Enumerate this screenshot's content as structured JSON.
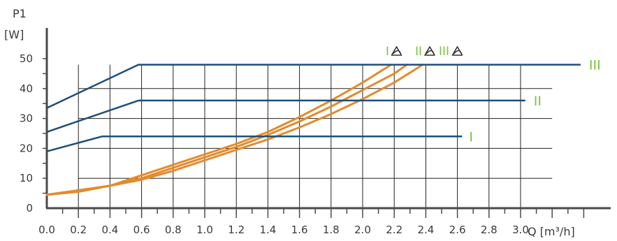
{
  "chart_data": {
    "type": "line",
    "title": "",
    "ylabel_line1": "P1",
    "ylabel_line2": "[W]",
    "xlabel": "Q [m³/h]",
    "xlim": [
      0,
      3.7
    ],
    "ylim": [
      0,
      55
    ],
    "x_ticks": [
      "0.0",
      "0.2",
      "0.4",
      "0.6",
      "0.8",
      "1.0",
      "1.2",
      "1.4",
      "1.6",
      "1.8",
      "2.0",
      "2.2",
      "2.4",
      "2.6",
      "2.8",
      "3.0"
    ],
    "y_ticks": [
      "0",
      "10",
      "20",
      "30",
      "40",
      "50"
    ],
    "grid": true,
    "colors": {
      "speed_curves": "#1f4e79",
      "autoadapt_curves": "#e48a2c",
      "labels": "#7dc242",
      "grid": "#222222",
      "axis": "#4a4a4a"
    },
    "speed_series": [
      {
        "name": "I",
        "points": [
          [
            0.0,
            19
          ],
          [
            0.35,
            24
          ],
          [
            2.63,
            24
          ]
        ]
      },
      {
        "name": "II",
        "points": [
          [
            0.0,
            25.5
          ],
          [
            0.58,
            36
          ],
          [
            3.03,
            36
          ]
        ]
      },
      {
        "name": "III",
        "points": [
          [
            0.0,
            33.5
          ],
          [
            0.58,
            48
          ],
          [
            3.38,
            48
          ]
        ]
      }
    ],
    "autoadapt_series": [
      {
        "points": [
          [
            0.0,
            4.5
          ],
          [
            0.2,
            5.5
          ],
          [
            0.4,
            7.5
          ],
          [
            0.6,
            11
          ],
          [
            0.8,
            14.5
          ],
          [
            1.0,
            18
          ],
          [
            1.2,
            21.5
          ],
          [
            1.4,
            25.5
          ],
          [
            1.6,
            30.5
          ],
          [
            1.8,
            36
          ],
          [
            2.0,
            42
          ],
          [
            2.18,
            48
          ]
        ]
      },
      {
        "points": [
          [
            0.0,
            4.5
          ],
          [
            0.2,
            5.7
          ],
          [
            0.4,
            7.5
          ],
          [
            0.6,
            10
          ],
          [
            0.8,
            13.5
          ],
          [
            1.0,
            17
          ],
          [
            1.2,
            20.5
          ],
          [
            1.4,
            24.5
          ],
          [
            1.6,
            29
          ],
          [
            1.8,
            34
          ],
          [
            2.0,
            39.5
          ],
          [
            2.2,
            45
          ],
          [
            2.28,
            48
          ]
        ]
      },
      {
        "points": [
          [
            0.0,
            4.5
          ],
          [
            0.2,
            6
          ],
          [
            0.4,
            7.5
          ],
          [
            0.6,
            9.5
          ],
          [
            0.8,
            12.5
          ],
          [
            1.0,
            16
          ],
          [
            1.2,
            19.5
          ],
          [
            1.4,
            23
          ],
          [
            1.6,
            27
          ],
          [
            1.8,
            31.5
          ],
          [
            2.0,
            36.5
          ],
          [
            2.2,
            42
          ],
          [
            2.38,
            48
          ]
        ]
      }
    ],
    "legend": [
      {
        "label": "I"
      },
      {
        "label": "II"
      },
      {
        "label": "III"
      }
    ]
  }
}
